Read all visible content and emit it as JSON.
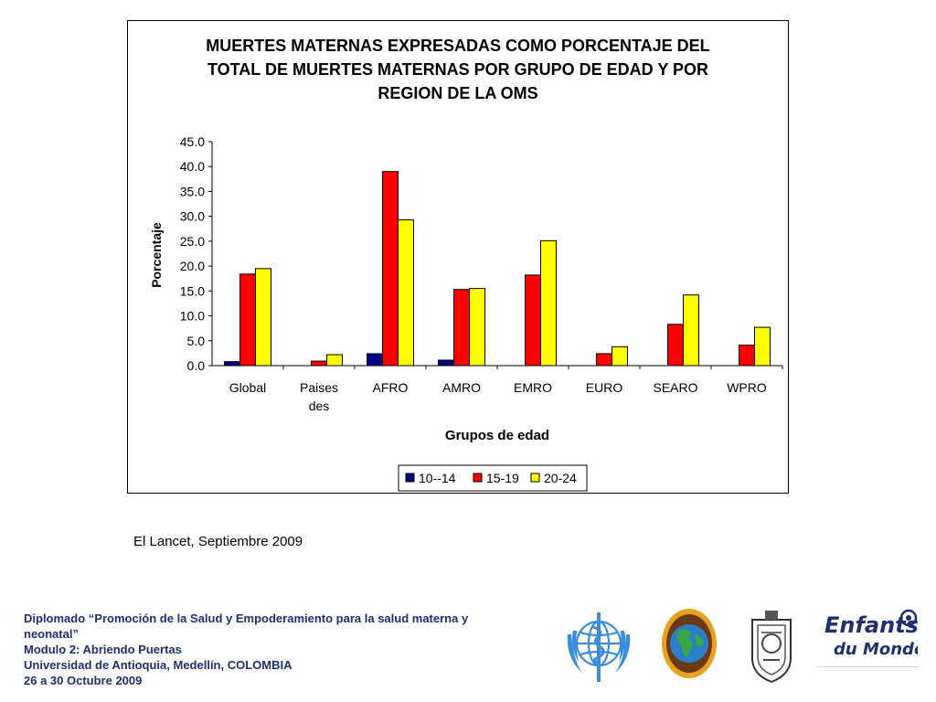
{
  "chart_data": {
    "type": "bar",
    "title": "MUERTES MATERNAS EXPRESADAS COMO PORCENTAJE DEL\nTOTAL DE MUERTES MATERNAS POR GRUPO DE EDAD Y POR\nREGION DE LA OMS",
    "xlabel": "Grupos de edad",
    "ylabel": "Porcentaje",
    "categories": [
      [
        "Global"
      ],
      [
        "Paises",
        "des"
      ],
      [
        "AFRO"
      ],
      [
        "AMRO"
      ],
      [
        "EMRO"
      ],
      [
        "EURO"
      ],
      [
        "SEARO"
      ],
      [
        "WPRO"
      ]
    ],
    "series": [
      {
        "name": "10--14",
        "color": "#000080",
        "values": [
          0.8,
          0,
          2.4,
          1.1,
          0,
          0,
          0,
          0
        ]
      },
      {
        "name": "15-19",
        "color": "#ff0000",
        "values": [
          18.4,
          0.9,
          39.0,
          15.3,
          18.2,
          2.4,
          8.3,
          4.1
        ]
      },
      {
        "name": "20-24",
        "color": "#ffff00",
        "values": [
          19.5,
          2.2,
          29.3,
          15.5,
          25.1,
          3.8,
          14.2,
          7.7
        ]
      }
    ],
    "ylim": [
      0,
      45
    ],
    "yticks": [
      "0.0",
      "5.0",
      "10.0",
      "15.0",
      "20.0",
      "25.0",
      "30.0",
      "35.0",
      "40.0",
      "45.0"
    ],
    "grid": false,
    "legend_position": "bottom"
  },
  "source": "El Lancet, Septiembre 2009",
  "footer": {
    "line1": "Diplomado “Promoción de la Salud y Empoderamiento para la salud materna y",
    "line2": "neonatal”",
    "line3": "Modulo 2: Abriendo Puertas",
    "line4": "Universidad de Antioquia, Medellín, COLOMBIA",
    "line5": "26 a 30 Octubre 2009"
  },
  "logos": {
    "who": "who-emblem",
    "globe": "globe-emblem",
    "seal": "university-seal",
    "edm_text1": "Enfants",
    "edm_text2": "du Monde"
  }
}
